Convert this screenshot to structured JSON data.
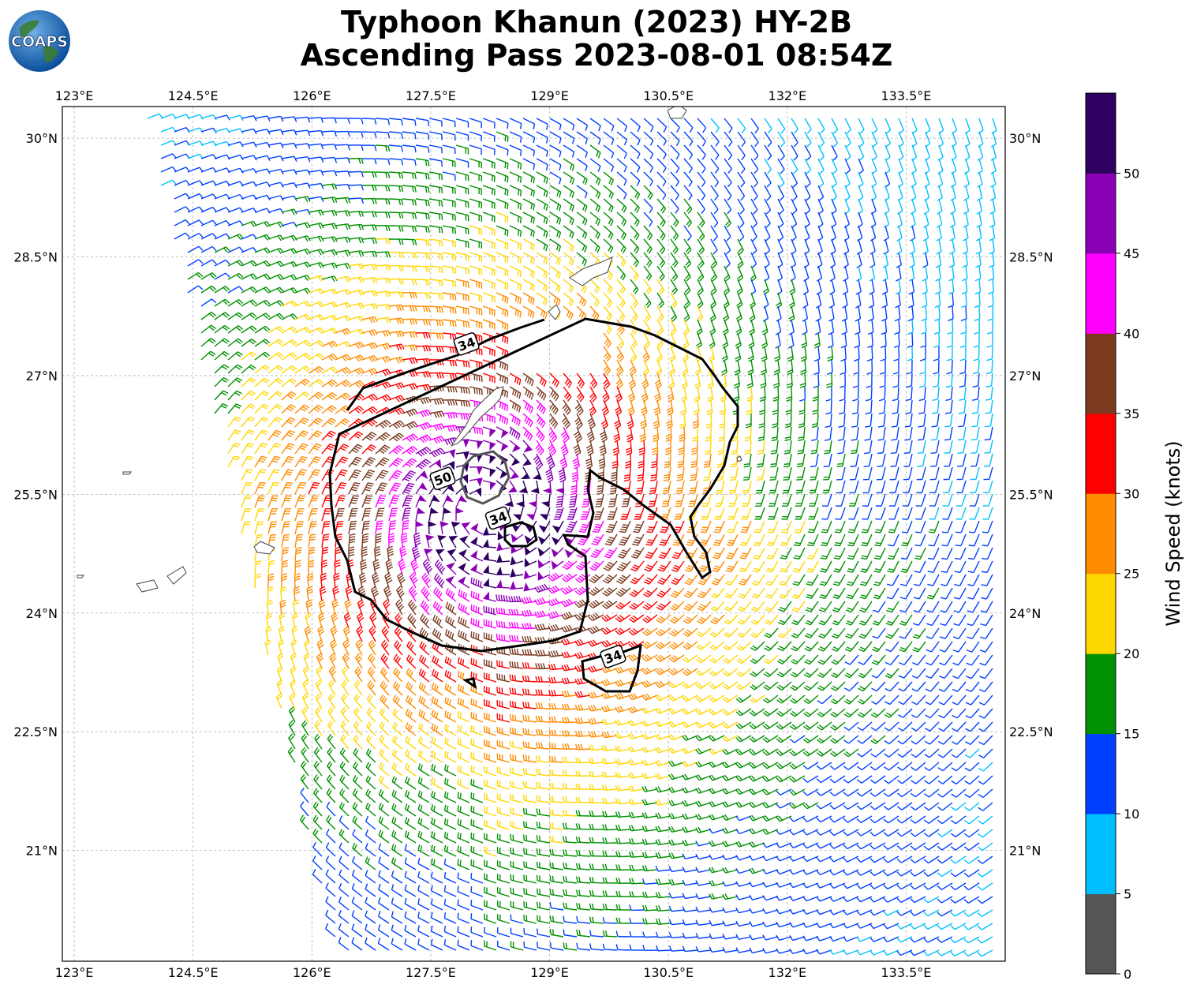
{
  "title": {
    "line1": "Typhoon Khanun (2023) HY-2B",
    "line2": "Ascending Pass 2023-08-01 08:54Z"
  },
  "logo": {
    "text": "COAPS",
    "icon": "globe-icon"
  },
  "map": {
    "lon_range": [
      122.85,
      134.75
    ],
    "lat_range": [
      19.6,
      30.4
    ],
    "lon_ticks": [
      "123°E",
      "124.5°E",
      "126°E",
      "127.5°E",
      "129°E",
      "130.5°E",
      "132°E",
      "133.5°E"
    ],
    "lat_ticks": [
      "30°N",
      "28.5°N",
      "27°N",
      "25.5°N",
      "24°N",
      "22.5°N",
      "21°N"
    ],
    "storm_center": {
      "lon": 128.2,
      "lat": 25.3
    },
    "contour_labels": [
      {
        "text": "34",
        "lon": 127.95,
        "lat": 27.4
      },
      {
        "text": "50",
        "lon": 127.65,
        "lat": 25.7
      },
      {
        "text": "34",
        "lon": 128.35,
        "lat": 25.2
      },
      {
        "text": "34",
        "lon": 129.8,
        "lat": 23.45
      }
    ]
  },
  "colorbar": {
    "label": "Wind Speed (knots)",
    "ticks": [
      "0",
      "5",
      "10",
      "15",
      "20",
      "25",
      "30",
      "35",
      "40",
      "45",
      "50"
    ],
    "colors": [
      "#555555",
      "#00bfff",
      "#0040ff",
      "#009000",
      "#ffd700",
      "#ff8c00",
      "#ff0000",
      "#7b3a20",
      "#ff00ff",
      "#8a00b4",
      "#2e0060"
    ]
  }
}
